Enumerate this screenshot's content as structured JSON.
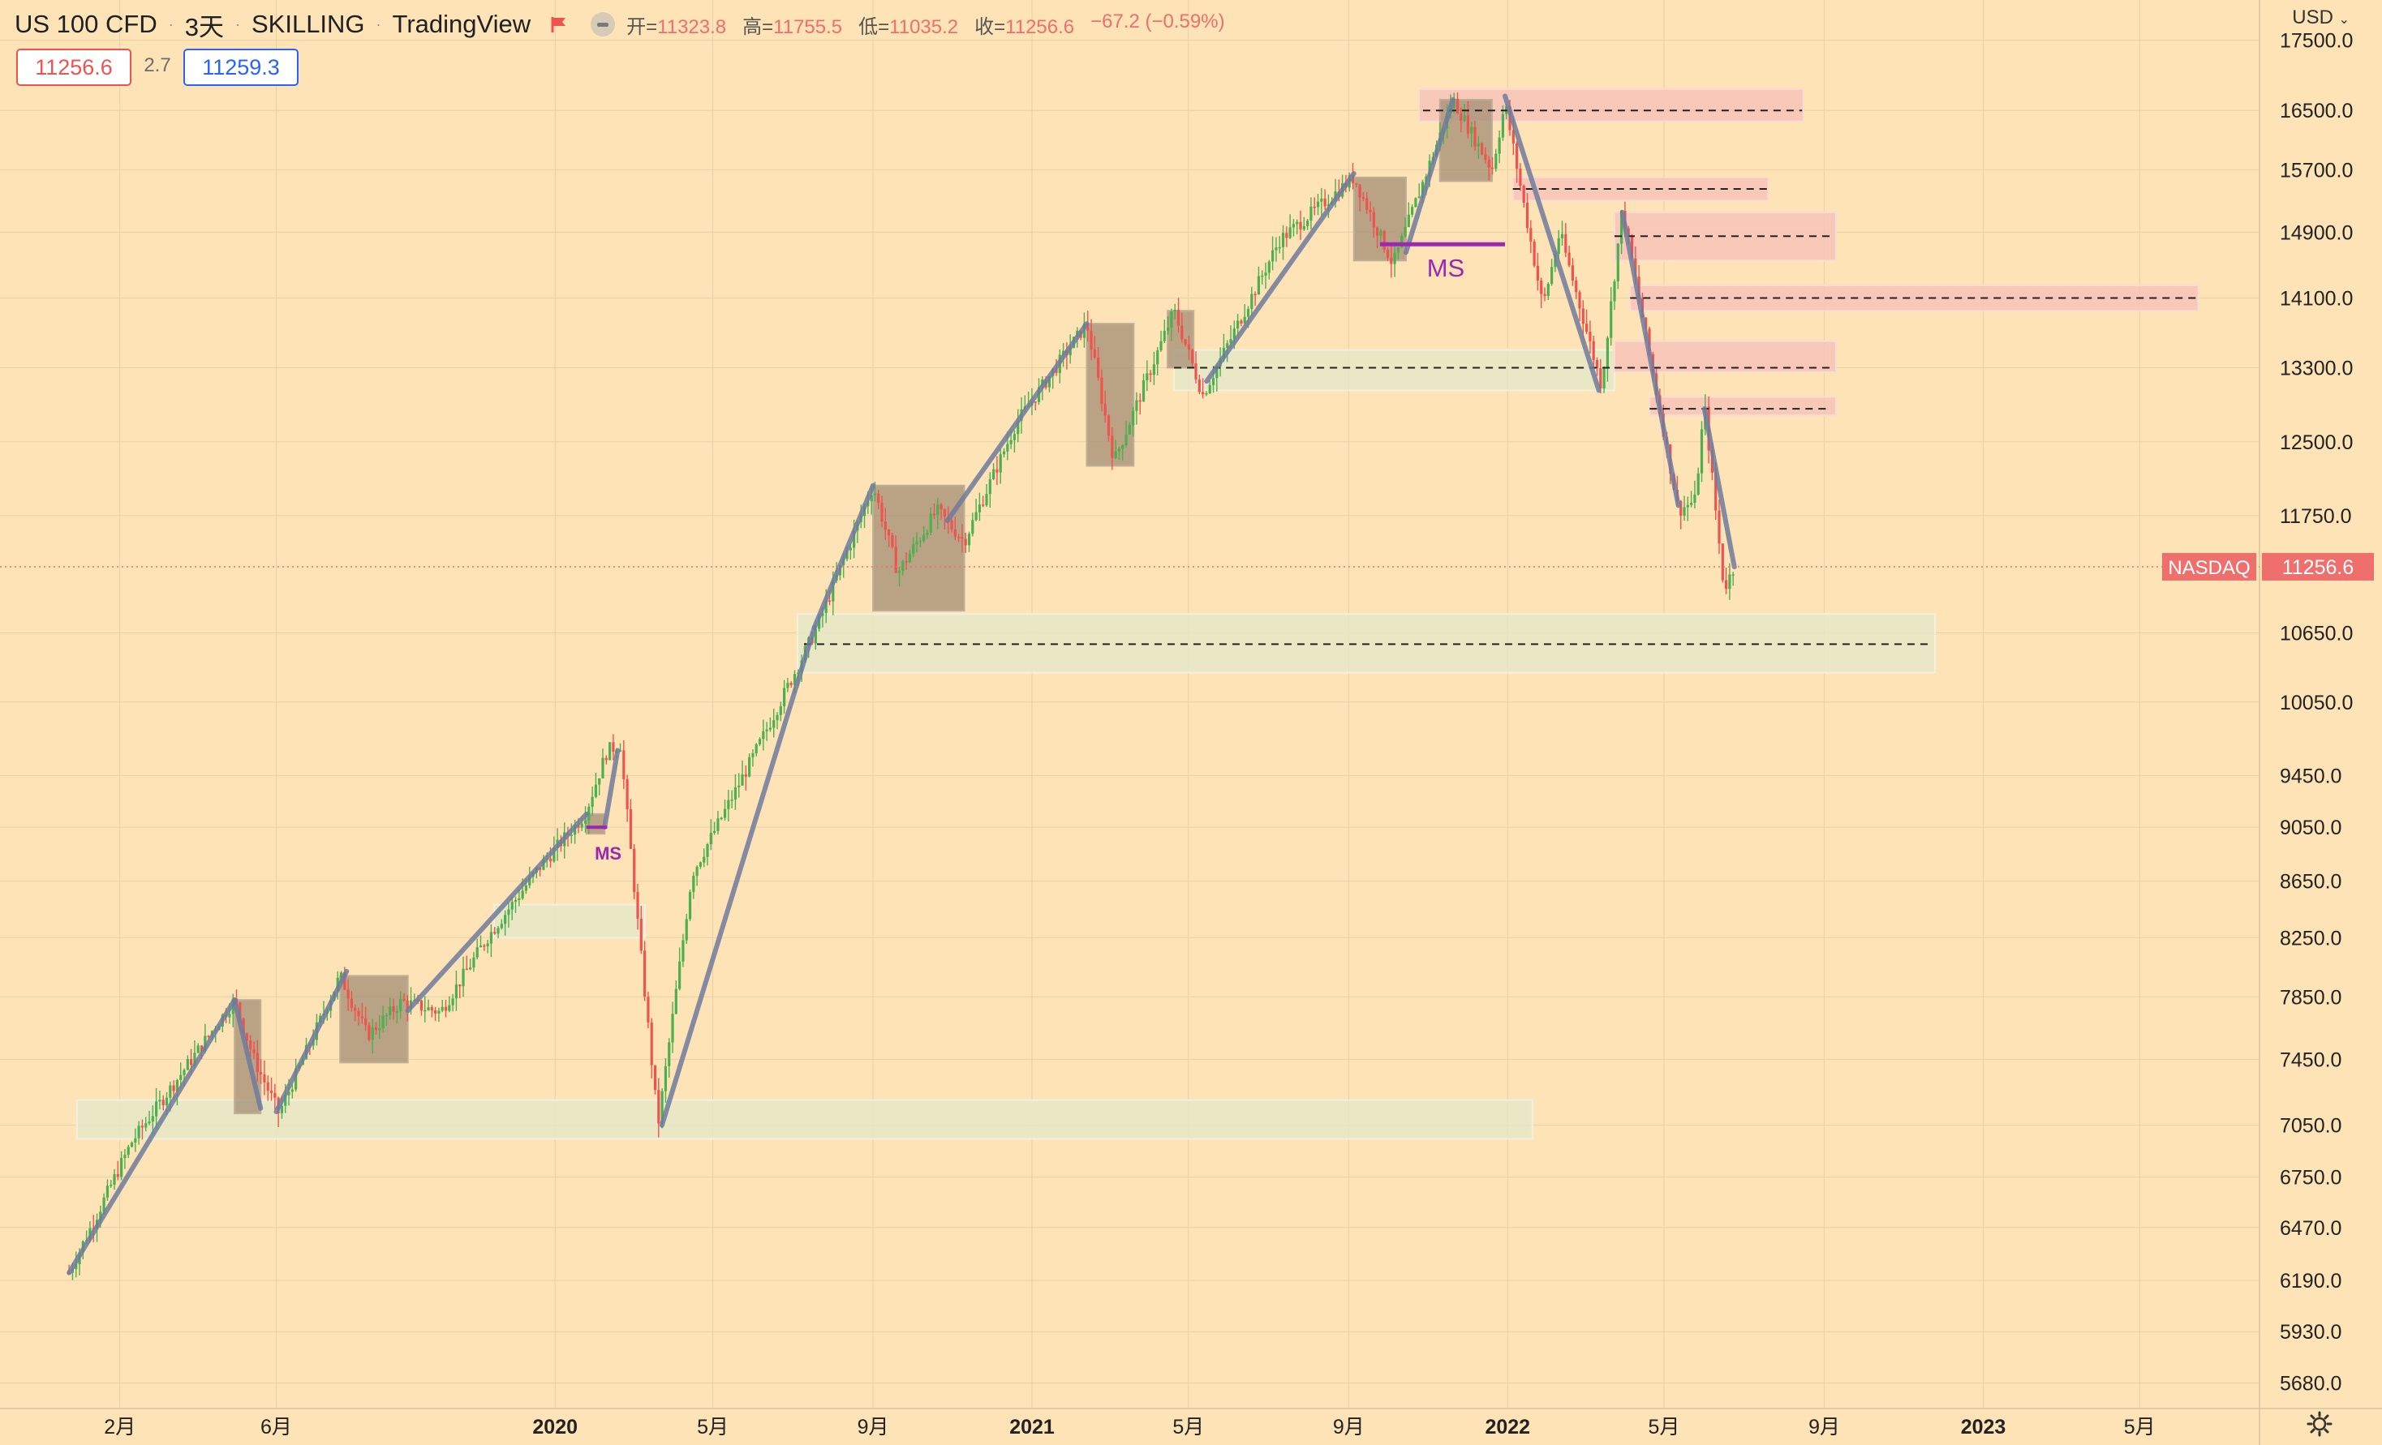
{
  "header": {
    "symbol": "US 100 CFD",
    "interval": "3天",
    "author": "SKILLING",
    "platform": "TradingView",
    "ohlc": {
      "open_label": "开=",
      "open": "11323.8",
      "high_label": "高=",
      "high": "11755.5",
      "low_label": "低=",
      "low": "11035.2",
      "close_label": "收=",
      "close": "11256.6",
      "change": "−67.2 (−0.59%)"
    },
    "sell_price": "11256.6",
    "spread": "2.7",
    "buy_price": "11259.3",
    "currency": "USD"
  },
  "colors": {
    "background": "#fde3b5",
    "up_candle": "#4caf50",
    "down_candle": "#ef5350",
    "trend_line": "#6e7b9c",
    "supply_zone": "#f7c4b8",
    "demand_zone": "#e6e8c7",
    "consolidation_box": "#a08a72",
    "ms_label": "#9c27b0",
    "price_tag": "#ef6f6c"
  },
  "chart_data": {
    "type": "candlestick",
    "exchange_label": "NASDAQ",
    "last_price": 11256.6,
    "last_price_label": "11256.6",
    "y_scale": "log",
    "ylim": [
      5560,
      18100
    ],
    "x_range": [
      "2018-11-01",
      "2023-08-01"
    ],
    "y_ticks": [
      {
        "value": 17500,
        "label": "17500.0"
      },
      {
        "value": 16500,
        "label": "16500.0"
      },
      {
        "value": 15700,
        "label": "15700.0"
      },
      {
        "value": 14900,
        "label": "14900.0"
      },
      {
        "value": 14100,
        "label": "14100.0"
      },
      {
        "value": 13300,
        "label": "13300.0"
      },
      {
        "value": 12500,
        "label": "12500.0"
      },
      {
        "value": 11750,
        "label": "11750.0"
      },
      {
        "value": 10650,
        "label": "10650.0"
      },
      {
        "value": 10050,
        "label": "10050.0"
      },
      {
        "value": 9450,
        "label": "9450.0"
      },
      {
        "value": 9050,
        "label": "9050.0"
      },
      {
        "value": 8650,
        "label": "8650.0"
      },
      {
        "value": 8250,
        "label": "8250.0"
      },
      {
        "value": 7850,
        "label": "7850.0"
      },
      {
        "value": 7450,
        "label": "7450.0"
      },
      {
        "value": 7050,
        "label": "7050.0"
      },
      {
        "value": 6750,
        "label": "6750.0"
      },
      {
        "value": 6470,
        "label": "6470.0"
      },
      {
        "value": 6190,
        "label": "6190.0"
      },
      {
        "value": 5930,
        "label": "5930.0"
      },
      {
        "value": 5680,
        "label": "5680.0"
      }
    ],
    "x_ticks": [
      {
        "date": "2019-02-01",
        "label": "2月",
        "bold": false
      },
      {
        "date": "2019-06-01",
        "label": "6月",
        "bold": false
      },
      {
        "date": "2020-01-01",
        "label": "2020",
        "bold": true
      },
      {
        "date": "2020-05-01",
        "label": "5月",
        "bold": false
      },
      {
        "date": "2020-09-01",
        "label": "9月",
        "bold": false
      },
      {
        "date": "2021-01-01",
        "label": "2021",
        "bold": true
      },
      {
        "date": "2021-05-01",
        "label": "5月",
        "bold": false
      },
      {
        "date": "2021-09-01",
        "label": "9月",
        "bold": false
      },
      {
        "date": "2022-01-01",
        "label": "2022",
        "bold": true
      },
      {
        "date": "2022-05-01",
        "label": "5月",
        "bold": false
      },
      {
        "date": "2022-09-01",
        "label": "9月",
        "bold": false
      },
      {
        "date": "2023-01-01",
        "label": "2023",
        "bold": true
      },
      {
        "date": "2023-05-01",
        "label": "5月",
        "bold": false
      }
    ],
    "price_path": [
      [
        "2018-12-24",
        6230
      ],
      [
        "2019-02-10",
        6950
      ],
      [
        "2019-04-30",
        7830
      ],
      [
        "2019-05-15",
        7450
      ],
      [
        "2019-06-03",
        7120
      ],
      [
        "2019-07-20",
        7990
      ],
      [
        "2019-08-10",
        7600
      ],
      [
        "2019-09-05",
        7820
      ],
      [
        "2019-10-05",
        7750
      ],
      [
        "2019-11-10",
        8250
      ],
      [
        "2019-12-20",
        8750
      ],
      [
        "2020-01-24",
        9150
      ],
      [
        "2020-02-10",
        9650
      ],
      [
        "2020-02-20",
        9700
      ],
      [
        "2020-03-05",
        8300
      ],
      [
        "2020-03-20",
        7050
      ],
      [
        "2020-04-15",
        8700
      ],
      [
        "2020-06-01",
        9600
      ],
      [
        "2020-07-20",
        10700
      ],
      [
        "2020-09-01",
        12050
      ],
      [
        "2020-09-20",
        11200
      ],
      [
        "2020-10-20",
        11800
      ],
      [
        "2020-11-10",
        11500
      ],
      [
        "2020-12-20",
        12700
      ],
      [
        "2021-02-12",
        13800
      ],
      [
        "2021-03-05",
        12300
      ],
      [
        "2021-04-20",
        13950
      ],
      [
        "2021-05-12",
        13000
      ],
      [
        "2021-07-10",
        14800
      ],
      [
        "2021-09-05",
        15600
      ],
      [
        "2021-10-05",
        14500
      ],
      [
        "2021-11-20",
        16650
      ],
      [
        "2021-12-20",
        15700
      ],
      [
        "2021-12-30",
        16600
      ],
      [
        "2022-01-28",
        14000
      ],
      [
        "2022-02-10",
        14900
      ],
      [
        "2022-03-14",
        13100
      ],
      [
        "2022-03-30",
        15200
      ],
      [
        "2022-05-12",
        11800
      ],
      [
        "2022-05-25",
        11900
      ],
      [
        "2022-06-01",
        12900
      ],
      [
        "2022-06-16",
        11050
      ],
      [
        "2022-06-24",
        11256
      ]
    ],
    "trend_lines": [
      [
        [
          "2018-12-24",
          6230
        ],
        [
          "2019-04-30",
          7830
        ]
      ],
      [
        [
          "2019-04-30",
          7830
        ],
        [
          "2019-05-20",
          7150
        ]
      ],
      [
        [
          "2019-06-01",
          7130
        ],
        [
          "2019-07-25",
          8020
        ]
      ],
      [
        [
          "2019-09-10",
          7760
        ],
        [
          "2020-01-25",
          9150
        ]
      ],
      [
        [
          "2020-02-08",
          9050
        ],
        [
          "2020-02-18",
          9650
        ]
      ],
      [
        [
          "2020-03-23",
          7050
        ],
        [
          "2020-07-18",
          10700
        ]
      ],
      [
        [
          "2020-07-18",
          10700
        ],
        [
          "2020-09-01",
          12050
        ]
      ],
      [
        [
          "2020-10-28",
          11700
        ],
        [
          "2021-02-12",
          13800
        ]
      ],
      [
        [
          "2021-05-15",
          13150
        ],
        [
          "2021-09-05",
          15650
        ]
      ],
      [
        [
          "2021-10-15",
          14650
        ],
        [
          "2021-11-20",
          16650
        ]
      ],
      [
        [
          "2021-12-30",
          16700
        ],
        [
          "2022-03-12",
          13050
        ]
      ],
      [
        [
          "2022-03-30",
          15150
        ],
        [
          "2022-05-12",
          11850
        ]
      ],
      [
        [
          "2022-06-01",
          12850
        ],
        [
          "2022-06-24",
          11256
        ]
      ]
    ],
    "supply_zones": [
      {
        "from": "2021-10-25",
        "to": "2022-08-16",
        "low": 16350,
        "high": 16800
      },
      {
        "from": "2022-01-05",
        "to": "2022-07-20",
        "low": 15300,
        "high": 15600
      },
      {
        "from": "2022-03-24",
        "to": "2022-09-10",
        "low": 14550,
        "high": 15150
      },
      {
        "from": "2022-04-05",
        "to": "2023-06-15",
        "low": 13950,
        "high": 14250
      },
      {
        "from": "2022-03-24",
        "to": "2022-09-10",
        "low": 13250,
        "high": 13600
      },
      {
        "from": "2022-04-20",
        "to": "2022-09-10",
        "low": 12780,
        "high": 12980
      }
    ],
    "demand_zones": [
      {
        "from": "2018-12-30",
        "to": "2022-01-20",
        "low": 6970,
        "high": 7200
      },
      {
        "from": "2019-11-15",
        "to": "2020-03-10",
        "low": 8250,
        "high": 8480
      },
      {
        "from": "2020-07-05",
        "to": "2022-11-25",
        "low": 10300,
        "high": 10820
      },
      {
        "from": "2021-04-20",
        "to": "2022-03-24",
        "low": 13050,
        "high": 13500
      }
    ],
    "consolidation_boxes": [
      {
        "from": "2019-04-30",
        "to": "2019-05-20",
        "low": 7120,
        "high": 7830
      },
      {
        "from": "2019-07-20",
        "to": "2019-09-10",
        "low": 7430,
        "high": 7990
      },
      {
        "from": "2020-01-25",
        "to": "2020-02-08",
        "low": 9000,
        "high": 9150
      },
      {
        "from": "2020-09-01",
        "to": "2020-11-10",
        "low": 10850,
        "high": 12050
      },
      {
        "from": "2021-02-12",
        "to": "2021-03-20",
        "low": 12250,
        "high": 13800
      },
      {
        "from": "2021-04-15",
        "to": "2021-05-05",
        "low": 13300,
        "high": 13950
      },
      {
        "from": "2021-09-05",
        "to": "2021-10-15",
        "low": 14550,
        "high": 15600
      },
      {
        "from": "2021-11-10",
        "to": "2021-12-20",
        "low": 15550,
        "high": 16650
      }
    ],
    "dashed_levels": [
      {
        "from": "2021-10-28",
        "to": "2022-08-15",
        "price": 16500
      },
      {
        "from": "2022-01-05",
        "to": "2022-07-20",
        "price": 15450
      },
      {
        "from": "2022-03-24",
        "to": "2022-09-05",
        "price": 14850
      },
      {
        "from": "2022-04-05",
        "to": "2023-06-15",
        "price": 14100
      },
      {
        "from": "2021-04-20",
        "to": "2022-03-24",
        "price": 13300
      },
      {
        "from": "2022-03-24",
        "to": "2022-09-05",
        "price": 13300
      },
      {
        "from": "2022-04-20",
        "to": "2022-09-05",
        "price": 12850
      },
      {
        "from": "2020-07-10",
        "to": "2022-11-20",
        "price": 10550
      }
    ],
    "market_structure": [
      {
        "from": "2020-01-25",
        "to": "2020-02-10",
        "price": 9050,
        "label": "MS",
        "size": "small"
      },
      {
        "from": "2021-09-25",
        "to": "2021-12-30",
        "price": 14750,
        "label": "MS",
        "size": "large"
      }
    ]
  }
}
